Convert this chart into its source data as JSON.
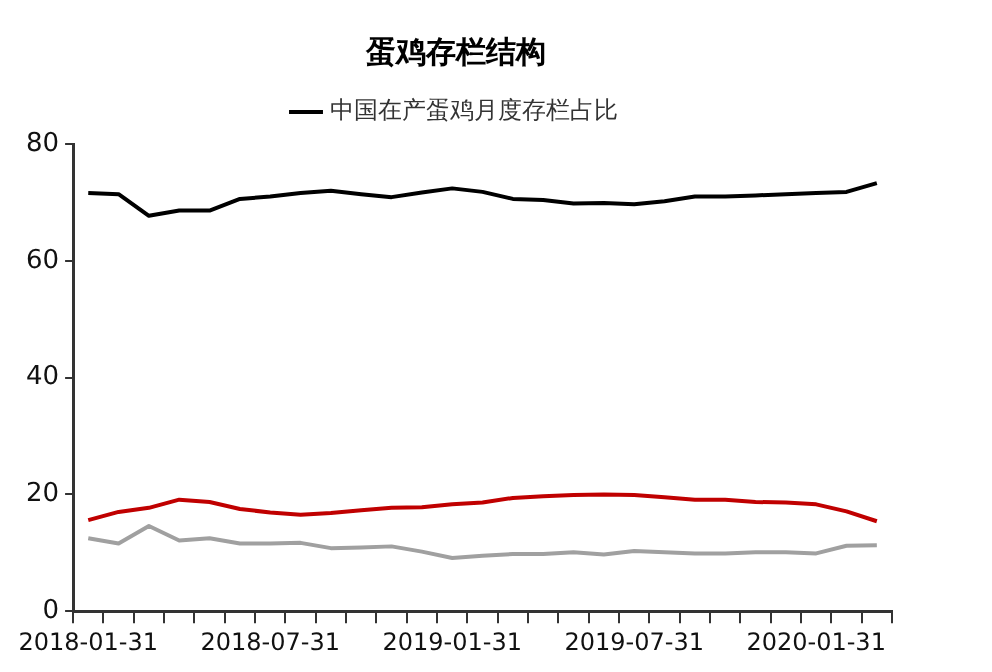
{
  "chart_data": {
    "type": "line",
    "title": "蛋鸡存栏结构",
    "categories": [
      "2018-01-31",
      null,
      null,
      null,
      null,
      null,
      "2018-07-31",
      null,
      null,
      null,
      null,
      null,
      "2019-01-31",
      null,
      null,
      null,
      null,
      null,
      "2019-07-31",
      null,
      null,
      null,
      null,
      null,
      "2020-01-31",
      null,
      null
    ],
    "series": [
      {
        "name": "中国在产蛋鸡月度存栏占比",
        "color": "#000000",
        "values": [
          71.6,
          71.4,
          67.7,
          68.6,
          68.6,
          70.6,
          71.0,
          71.6,
          72.0,
          71.4,
          70.9,
          71.7,
          72.4,
          71.8,
          70.6,
          70.4,
          69.8,
          69.9,
          69.7,
          70.2,
          71.0,
          71.0,
          71.2,
          71.4,
          71.6,
          71.8,
          73.3
        ]
      },
      {
        "color": "#c00000",
        "values": [
          15.6,
          17.0,
          17.7,
          19.1,
          18.7,
          17.5,
          16.9,
          16.5,
          16.8,
          17.3,
          17.7,
          17.8,
          18.3,
          18.6,
          19.4,
          19.7,
          19.9,
          20.0,
          19.9,
          19.5,
          19.1,
          19.1,
          18.7,
          18.6,
          18.3,
          17.1,
          15.4
        ]
      },
      {
        "color": "#a0a0a0",
        "values": [
          12.5,
          11.6,
          14.6,
          12.1,
          12.5,
          11.6,
          11.6,
          11.7,
          10.8,
          10.9,
          11.1,
          10.2,
          9.1,
          9.5,
          9.8,
          9.8,
          10.1,
          9.7,
          10.3,
          10.1,
          9.9,
          9.9,
          10.1,
          10.1,
          9.9,
          11.2,
          11.3
        ]
      }
    ],
    "ylim": [
      0,
      80
    ],
    "yticks": [
      0,
      20,
      40,
      60,
      80
    ],
    "grid": false,
    "legend": "top",
    "marker": "none",
    "line_style": "solid"
  }
}
